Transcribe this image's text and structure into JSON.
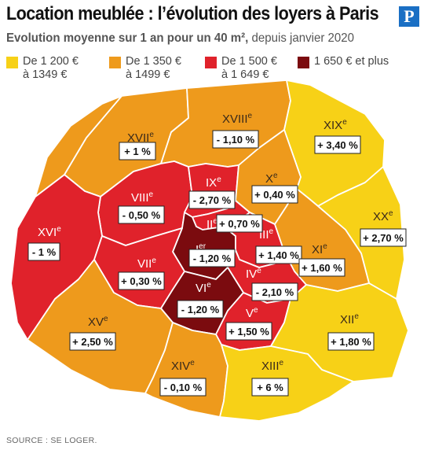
{
  "title": "Location meublée : l’évolution des loyers à Paris",
  "logo_letter": "P",
  "subtitle": {
    "bold": "Evolution moyenne sur 1 an pour un 40 m²,",
    "normal": " depuis janvier 2020"
  },
  "legend": [
    {
      "line1": "De 1 200 €",
      "line2": "à 1349 €",
      "color": "#f7d117"
    },
    {
      "line1": "De 1 350 €",
      "line2": "à 1499 €",
      "color": "#ee9a1c"
    },
    {
      "line1": "De 1 500 €",
      "line2": "à 1 649 €",
      "color": "#e0222b"
    },
    {
      "line1": "1 650 € et plus",
      "line2": "",
      "color": "#7b0b0f"
    }
  ],
  "arrondissements": [
    {
      "id": "XVII",
      "value": "+ 1 %",
      "band": 1
    },
    {
      "id": "XVIII",
      "value": "- 1,10 %",
      "band": 1
    },
    {
      "id": "XIX",
      "value": "+ 3,40 %",
      "band": 0
    },
    {
      "id": "VIII",
      "value": "- 0,50 %",
      "band": 2
    },
    {
      "id": "IX",
      "value": "- 2,70 %",
      "band": 2
    },
    {
      "id": "X",
      "value": "+ 0,40 %",
      "band": 1
    },
    {
      "id": "XX",
      "value": "+ 2,70 %",
      "band": 0
    },
    {
      "id": "XVI",
      "value": "- 1 %",
      "band": 2
    },
    {
      "id": "II",
      "value": "+ 0,70 %",
      "band": 2
    },
    {
      "id": "I",
      "value": "- 1,20 %",
      "band": 3
    },
    {
      "id": "III",
      "value": "+ 1,40 %",
      "band": 2
    },
    {
      "id": "XI",
      "value": "+ 1,60 %",
      "band": 1
    },
    {
      "id": "VII",
      "value": "+ 0,30 %",
      "band": 2
    },
    {
      "id": "IV",
      "value": "- 2,10 %",
      "band": 2
    },
    {
      "id": "VI",
      "value": "- 1,20 %",
      "band": 3
    },
    {
      "id": "V",
      "value": "+ 1,50 %",
      "band": 2
    },
    {
      "id": "XII",
      "value": "+ 1,80 %",
      "band": 0
    },
    {
      "id": "XV",
      "value": "+ 2,50 %",
      "band": 1
    },
    {
      "id": "XIV",
      "value": "- 0,10 %",
      "band": 1
    },
    {
      "id": "XIII",
      "value": "+ 6 %",
      "band": 0
    }
  ],
  "source": "SOURCE : SE LOGER."
}
